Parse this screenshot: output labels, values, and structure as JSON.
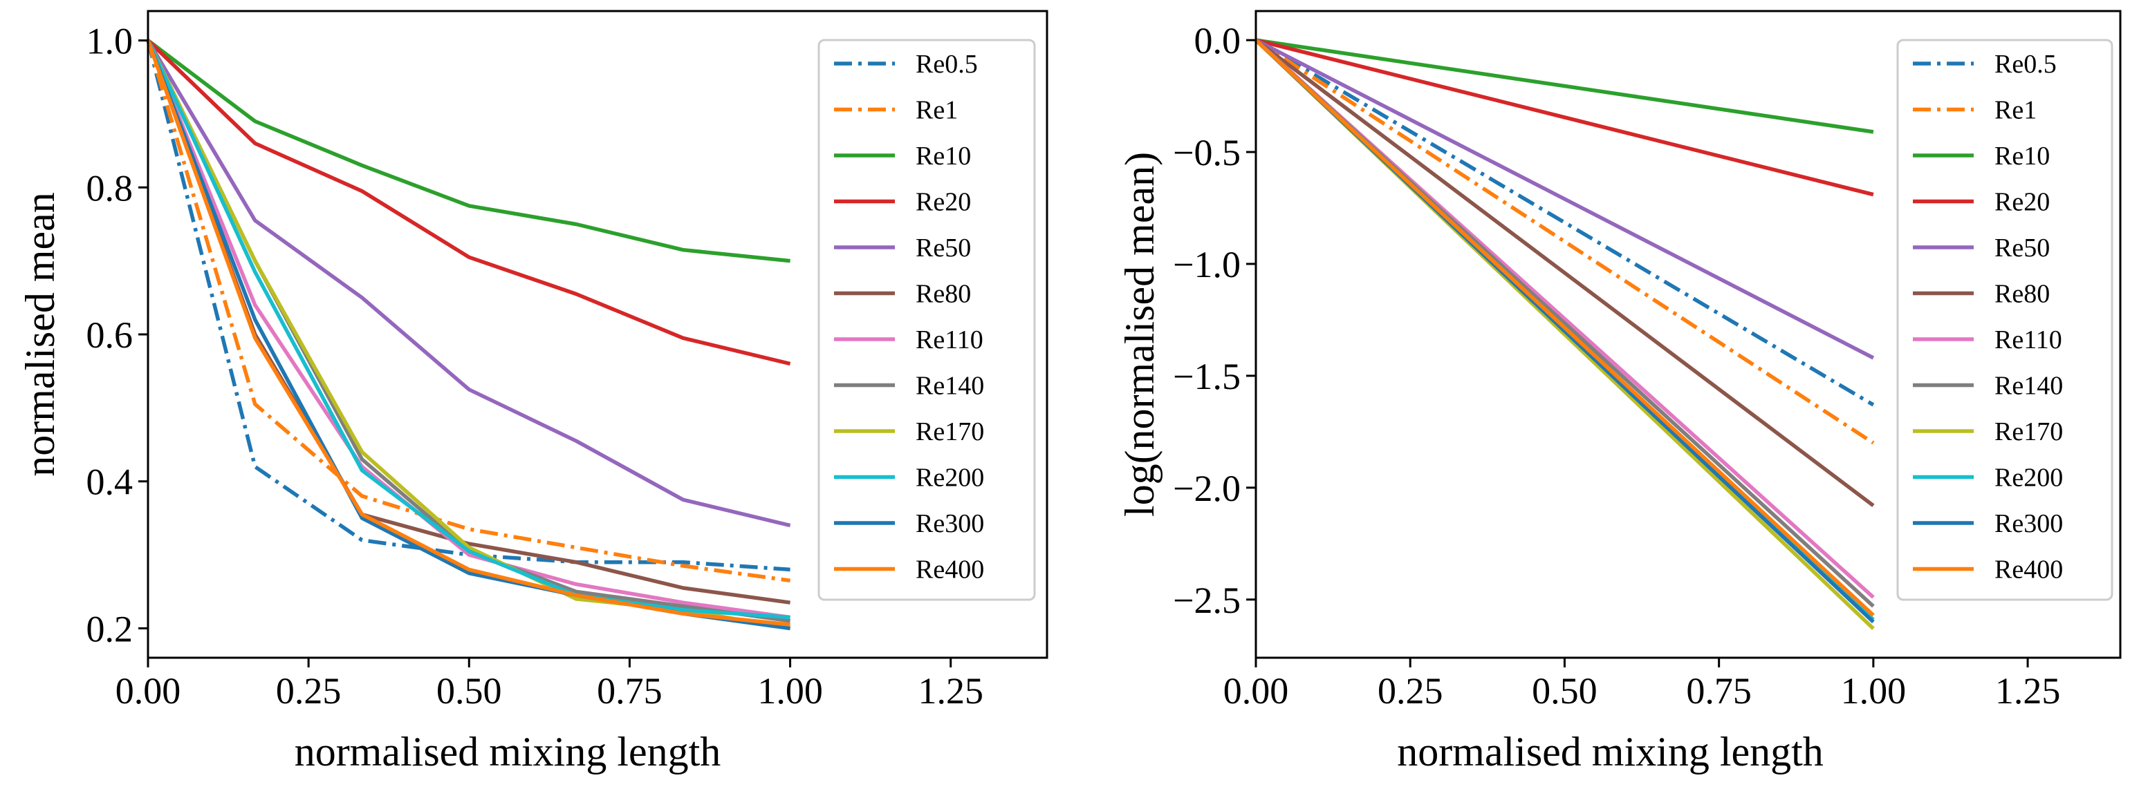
{
  "chart_data": [
    {
      "type": "line",
      "xlabel": "normalised mixing length",
      "ylabel": "normalised mean",
      "xlim": [
        0.0,
        1.4
      ],
      "ylim": [
        0.16,
        1.04
      ],
      "xticks": [
        "0.00",
        "0.25",
        "0.50",
        "0.75",
        "1.00",
        "1.25"
      ],
      "yticks": [
        "0.2",
        "0.4",
        "0.6",
        "0.8",
        "1.0"
      ],
      "grid": false,
      "legend_position": "top-right",
      "x": [
        0.0,
        0.1667,
        0.3333,
        0.5,
        0.6667,
        0.8333,
        1.0
      ],
      "series": [
        {
          "name": "Re0.5",
          "color": "#1f77b4",
          "dash": "dashdot",
          "values": [
            1.0,
            0.42,
            0.32,
            0.3,
            0.29,
            0.29,
            0.28
          ]
        },
        {
          "name": "Re1",
          "color": "#ff7f0e",
          "dash": "dashdot",
          "values": [
            1.0,
            0.505,
            0.38,
            0.335,
            0.31,
            0.285,
            0.265
          ]
        },
        {
          "name": "Re10",
          "color": "#2ca02c",
          "dash": "solid",
          "values": [
            1.0,
            0.89,
            0.83,
            0.775,
            0.75,
            0.715,
            0.7
          ]
        },
        {
          "name": "Re20",
          "color": "#d62728",
          "dash": "solid",
          "values": [
            1.0,
            0.86,
            0.795,
            0.705,
            0.655,
            0.595,
            0.56
          ]
        },
        {
          "name": "Re50",
          "color": "#9467bd",
          "dash": "solid",
          "values": [
            1.0,
            0.755,
            0.65,
            0.525,
            0.455,
            0.375,
            0.34
          ]
        },
        {
          "name": "Re80",
          "color": "#8c564b",
          "dash": "solid",
          "values": [
            1.0,
            0.6,
            0.355,
            0.315,
            0.29,
            0.255,
            0.235
          ]
        },
        {
          "name": "Re110",
          "color": "#e377c2",
          "dash": "solid",
          "values": [
            1.0,
            0.64,
            0.42,
            0.3,
            0.26,
            0.235,
            0.215
          ]
        },
        {
          "name": "Re140",
          "color": "#7f7f7f",
          "dash": "solid",
          "values": [
            1.0,
            0.7,
            0.43,
            0.305,
            0.25,
            0.23,
            0.21
          ]
        },
        {
          "name": "Re170",
          "color": "#bcbd22",
          "dash": "solid",
          "values": [
            1.0,
            0.7,
            0.44,
            0.31,
            0.24,
            0.225,
            0.2
          ]
        },
        {
          "name": "Re200",
          "color": "#17becf",
          "dash": "solid",
          "values": [
            1.0,
            0.685,
            0.415,
            0.305,
            0.245,
            0.225,
            0.215
          ]
        },
        {
          "name": "Re300",
          "color": "#1f77b4",
          "dash": "solid",
          "values": [
            1.0,
            0.62,
            0.35,
            0.275,
            0.245,
            0.22,
            0.2
          ]
        },
        {
          "name": "Re400",
          "color": "#ff7f0e",
          "dash": "solid",
          "values": [
            1.0,
            0.595,
            0.355,
            0.28,
            0.245,
            0.22,
            0.205
          ]
        }
      ]
    },
    {
      "type": "line",
      "xlabel": "normalised mixing length",
      "ylabel": "log(normalised mean)",
      "xlim": [
        0.0,
        1.4
      ],
      "ylim": [
        -2.76,
        0.13
      ],
      "xticks": [
        "0.00",
        "0.25",
        "0.50",
        "0.75",
        "1.00",
        "1.25"
      ],
      "yticks": [
        "0.0",
        "−0.5",
        "−1.0",
        "−1.5",
        "−2.0",
        "−2.5"
      ],
      "grid": false,
      "legend_position": "top-right",
      "x": [
        0.0,
        1.0
      ],
      "series": [
        {
          "name": "Re0.5",
          "color": "#1f77b4",
          "dash": "dashdot",
          "values": [
            0.0,
            -1.63
          ]
        },
        {
          "name": "Re1",
          "color": "#ff7f0e",
          "dash": "dashdot",
          "values": [
            0.0,
            -1.8
          ]
        },
        {
          "name": "Re10",
          "color": "#2ca02c",
          "dash": "solid",
          "values": [
            0.0,
            -0.41
          ]
        },
        {
          "name": "Re20",
          "color": "#d62728",
          "dash": "solid",
          "values": [
            0.0,
            -0.69
          ]
        },
        {
          "name": "Re50",
          "color": "#9467bd",
          "dash": "solid",
          "values": [
            0.0,
            -1.42
          ]
        },
        {
          "name": "Re80",
          "color": "#8c564b",
          "dash": "solid",
          "values": [
            0.0,
            -2.08
          ]
        },
        {
          "name": "Re110",
          "color": "#e377c2",
          "dash": "solid",
          "values": [
            0.0,
            -2.49
          ]
        },
        {
          "name": "Re140",
          "color": "#7f7f7f",
          "dash": "solid",
          "values": [
            0.0,
            -2.53
          ]
        },
        {
          "name": "Re170",
          "color": "#bcbd22",
          "dash": "solid",
          "values": [
            0.0,
            -2.63
          ]
        },
        {
          "name": "Re200",
          "color": "#17becf",
          "dash": "solid",
          "values": [
            0.0,
            -2.59
          ]
        },
        {
          "name": "Re300",
          "color": "#1f77b4",
          "dash": "solid",
          "values": [
            0.0,
            -2.6
          ]
        },
        {
          "name": "Re400",
          "color": "#ff7f0e",
          "dash": "solid",
          "values": [
            0.0,
            -2.57
          ]
        }
      ]
    }
  ]
}
